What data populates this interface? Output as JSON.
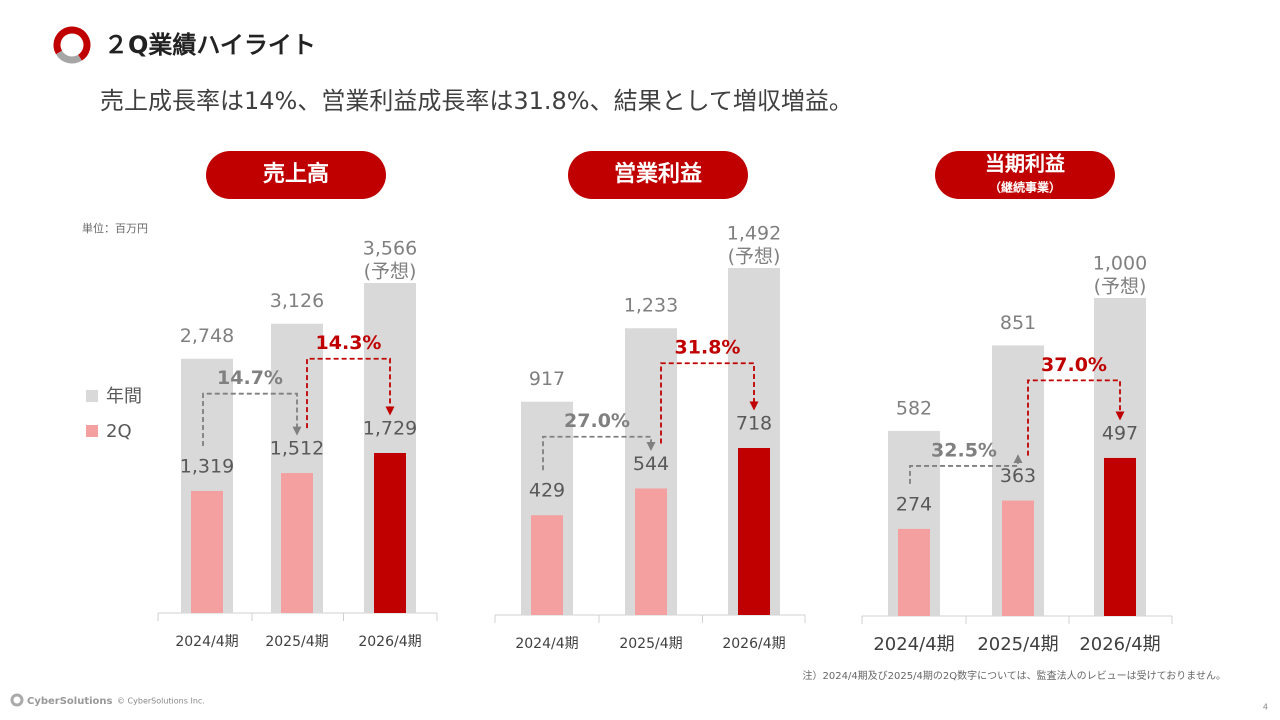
{
  "header": {
    "title": "２Q業績ハイライト",
    "subtitle": "売上成長率は14%、営業利益成長率は31.8%、結果として増収増益。"
  },
  "unit_label": "単位：百万円",
  "chart_data": [
    {
      "type": "bar",
      "title": "売上高",
      "categories": [
        "2024/4期",
        "2025/4期",
        "2026/4期"
      ],
      "series": [
        {
          "name": "年間",
          "color": "#d9d9d9",
          "values": [
            2748,
            3126,
            3566
          ],
          "value_labels": [
            "2,748",
            "3,126",
            "3,566"
          ]
        },
        {
          "name": "2Q",
          "colors": [
            "#f4a0a0",
            "#f4a0a0",
            "#c00000"
          ],
          "values": [
            1319,
            1512,
            1729
          ],
          "value_labels": [
            "1,319",
            "1,512",
            "1,729"
          ]
        }
      ],
      "forecast_label": "(予想)",
      "growth": [
        {
          "text": "14.7%",
          "color": "#808080"
        },
        {
          "text": "14.3%",
          "color": "#c00000"
        }
      ]
    },
    {
      "type": "bar",
      "title": "営業利益",
      "categories": [
        "2024/4期",
        "2025/4期",
        "2026/4期"
      ],
      "series": [
        {
          "name": "年間",
          "color": "#d9d9d9",
          "values": [
            917,
            1233,
            1492
          ],
          "value_labels": [
            "917",
            "1,233",
            "1,492"
          ]
        },
        {
          "name": "2Q",
          "colors": [
            "#f4a0a0",
            "#f4a0a0",
            "#c00000"
          ],
          "values": [
            429,
            544,
            718
          ],
          "value_labels": [
            "429",
            "544",
            "718"
          ]
        }
      ],
      "forecast_label": "(予想)",
      "growth": [
        {
          "text": "27.0%",
          "color": "#808080"
        },
        {
          "text": "31.8%",
          "color": "#c00000"
        }
      ]
    },
    {
      "type": "bar",
      "title": "当期利益",
      "subtitle": "（継続事業）",
      "categories": [
        "2024/4期",
        "2025/4期",
        "2026/4期"
      ],
      "series": [
        {
          "name": "年間",
          "color": "#d9d9d9",
          "values": [
            582,
            851,
            1000
          ],
          "value_labels": [
            "582",
            "851",
            "1,000"
          ]
        },
        {
          "name": "2Q",
          "colors": [
            "#f4a0a0",
            "#f4a0a0",
            "#c00000"
          ],
          "values": [
            274,
            363,
            497
          ],
          "value_labels": [
            "274",
            "363",
            "497"
          ]
        }
      ],
      "forecast_label": "(予想)",
      "growth": [
        {
          "text": "32.5%",
          "color": "#808080"
        },
        {
          "text": "37.0%",
          "color": "#c00000"
        }
      ]
    }
  ],
  "footnote": "注）2024/4期及び2025/4期の2Q数字については、監査法人のレビューは受けておりません。",
  "footer": {
    "logo": "CyberSolutions",
    "copyright": "© CyberSolutions Inc.",
    "page": "4"
  }
}
